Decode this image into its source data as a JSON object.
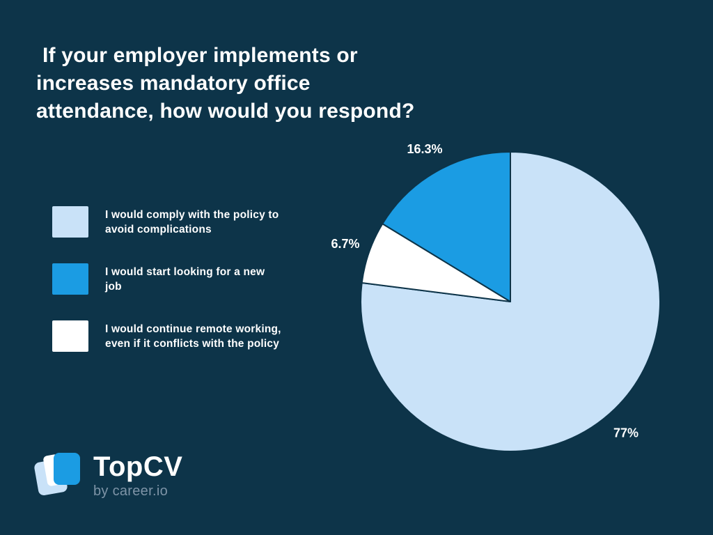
{
  "title": " If your employer implements or\nincreases mandatory office\nattendance, how would you respond?",
  "colors": {
    "background": "#0d3449",
    "light_blue": "#c9e2f8",
    "bright_blue": "#1b9ce3",
    "white": "#ffffff",
    "sub_text": "#7e94a7"
  },
  "legend": {
    "items": [
      {
        "label": "I would comply with the policy to\navoid complications",
        "color": "#c9e2f8"
      },
      {
        "label": "I would start looking for a new\njob",
        "color": "#1b9ce3"
      },
      {
        "label": "I would continue remote working,\neven if it conflicts with the policy",
        "color": "#ffffff"
      }
    ]
  },
  "chart_data": {
    "type": "pie",
    "title": "If your employer implements or increases mandatory office attendance, how would you respond?",
    "unit": "%",
    "slices": [
      {
        "label": "I would comply with the policy to avoid complications",
        "value": 77,
        "display": "77%",
        "color": "#c9e2f8"
      },
      {
        "label": "I would start looking for a new job",
        "value": 16.3,
        "display": "16.3%",
        "color": "#1b9ce3"
      },
      {
        "label": "I would continue remote working, even if it conflicts with the policy",
        "value": 6.7,
        "display": "6.7%",
        "color": "#ffffff"
      }
    ],
    "start_angle_deg": 0,
    "direction": "clockwise",
    "draw_order": [
      0,
      2,
      1
    ],
    "legend_position": "left",
    "value_labels_outside": true
  },
  "logo": {
    "brand": "TopCV",
    "sub": "by career.io"
  }
}
